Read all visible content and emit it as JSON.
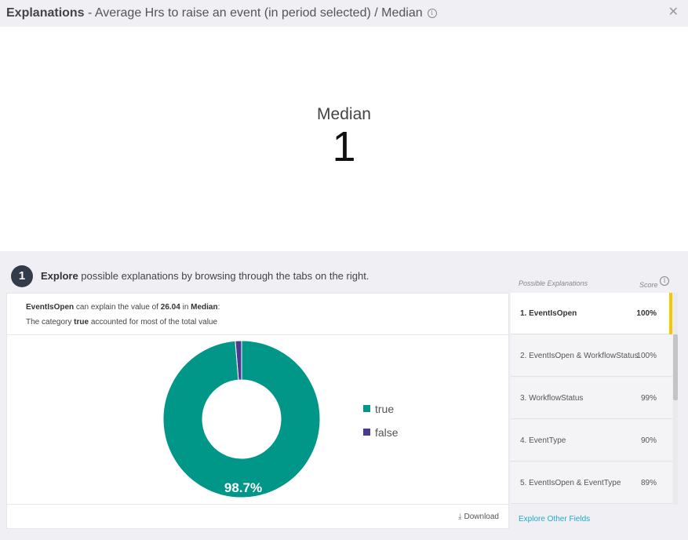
{
  "header": {
    "title_bold": "Explanations",
    "title_rest": " - Average Hrs to raise an event (in period selected) / Median"
  },
  "metric": {
    "label": "Median",
    "value": "1"
  },
  "step": {
    "number": "1",
    "bold": "Explore",
    "text": " possible explanations by browsing through the tabs on the right."
  },
  "panel": {
    "possible_explanations": "Possible Explanations",
    "score": "Score"
  },
  "description": {
    "field": "EventIsOpen",
    "mid1": " can explain the value of ",
    "value": "26.04",
    "mid2": " in ",
    "measure": "Median",
    "end1": ":",
    "line2_a": "The category ",
    "category": "true",
    "line2_b": " accounted for most of the total value"
  },
  "chart_data": {
    "type": "pie",
    "categories": [
      "true",
      "false"
    ],
    "values": [
      98.7,
      1.3
    ],
    "colors": [
      "#009688",
      "#4b3a8f"
    ],
    "data_label": "98.7%",
    "legend_placement": "right"
  },
  "footer": {
    "download": "Download"
  },
  "explanations": [
    {
      "label": "1. EventIsOpen",
      "score": "100%",
      "active": true
    },
    {
      "label": "2. EventIsOpen & WorkflowStatus",
      "score": "100%",
      "active": false
    },
    {
      "label": "3. WorkflowStatus",
      "score": "99%",
      "active": false
    },
    {
      "label": "4. EventType",
      "score": "90%",
      "active": false
    },
    {
      "label": "5. EventIsOpen & EventType",
      "score": "89%",
      "active": false
    }
  ],
  "explore_other": "Explore Other Fields",
  "icons": {
    "info": "info-icon",
    "close": "close-icon",
    "download": "download-icon"
  }
}
